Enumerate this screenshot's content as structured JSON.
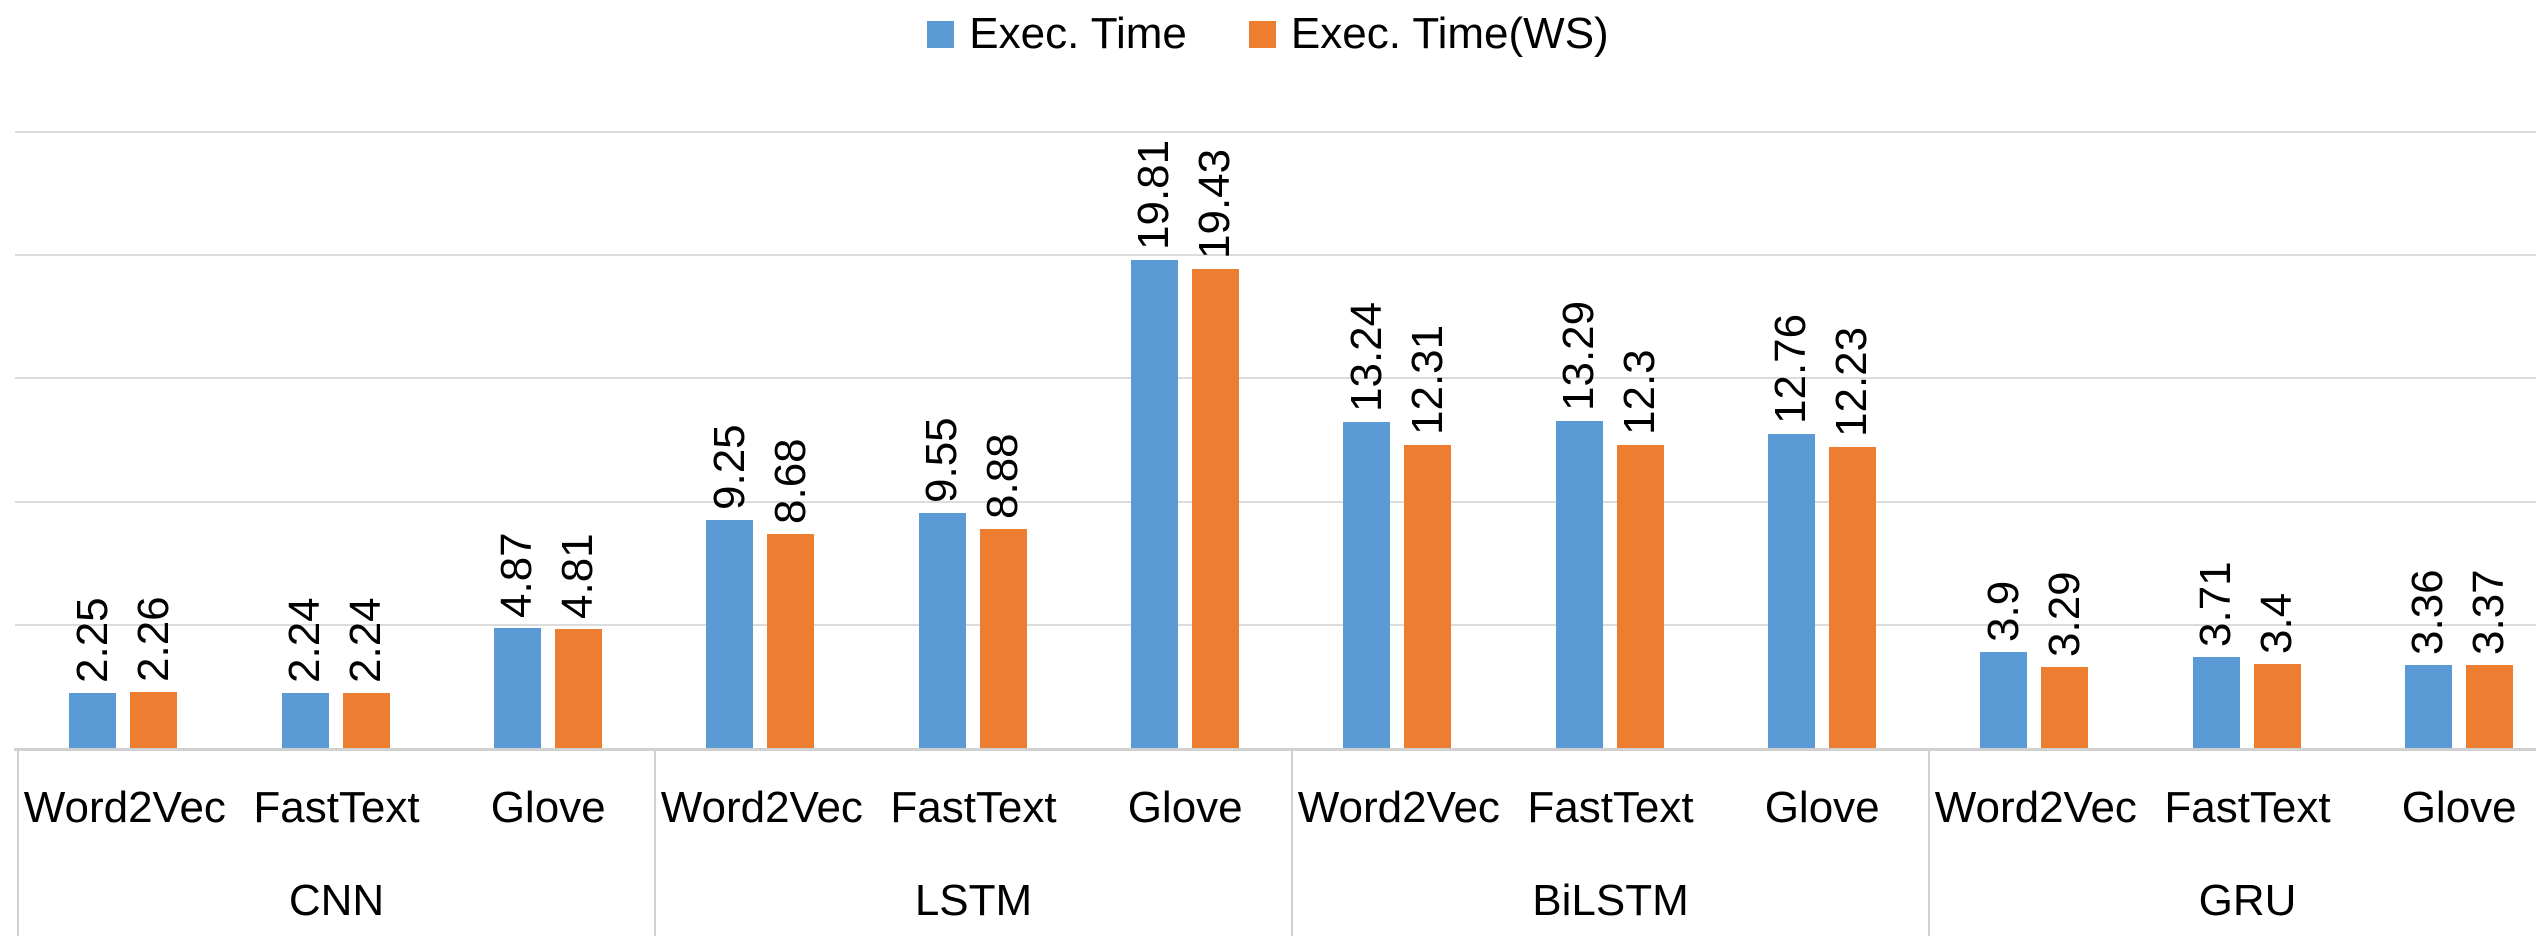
{
  "legend": {
    "items": [
      {
        "label": "Exec. Time",
        "color": "#5B9BD5"
      },
      {
        "label": "Exec. Time(WS)",
        "color": "#ED7D31"
      }
    ]
  },
  "chart_data": {
    "type": "bar",
    "title": "",
    "groups": [
      "CNN",
      "LSTM",
      "BiLSTM",
      "GRU"
    ],
    "categories_per_group": [
      "Word2Vec",
      "FastText",
      "Glove"
    ],
    "series": [
      {
        "name": "Exec. Time",
        "color": "#5B9BD5",
        "values": [
          [
            2.25,
            2.24,
            4.87
          ],
          [
            9.25,
            9.55,
            19.81
          ],
          [
            13.24,
            13.29,
            12.76
          ],
          [
            3.9,
            3.71,
            3.36
          ]
        ]
      },
      {
        "name": "Exec. Time(WS)",
        "color": "#ED7D31",
        "values": [
          [
            2.26,
            2.24,
            4.81
          ],
          [
            8.68,
            8.88,
            19.43
          ],
          [
            12.31,
            12.3,
            12.23
          ],
          [
            3.29,
            3.4,
            3.37
          ]
        ]
      }
    ],
    "ylim": [
      0,
      25
    ],
    "gridline_step": 5,
    "grid": true,
    "y_axis_tick_labels_visible": false,
    "legend_position": "top",
    "value_labels": "rotated 90deg above each bar"
  },
  "colors": {
    "background": "#FFFFFF",
    "gridline": "#DCDCDC",
    "axis_line": "#D0D0D0",
    "text": "#000000"
  }
}
